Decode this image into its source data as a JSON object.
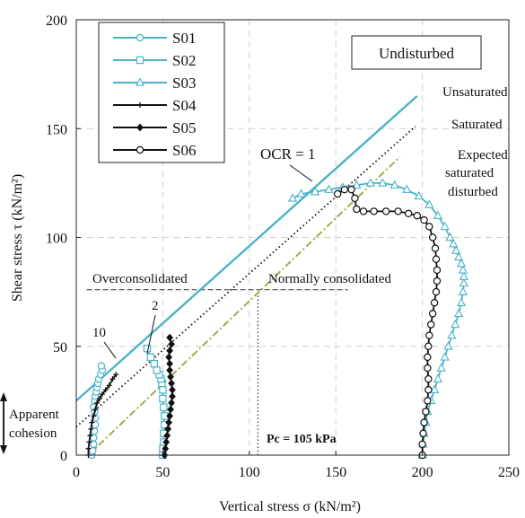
{
  "chart_data": {
    "type": "line",
    "title": "",
    "xlabel": "Vertical stress σ (kN/m²)",
    "ylabel": "Shear stress τ (kN/m²)",
    "xlim": [
      0,
      250
    ],
    "ylim": [
      0,
      200
    ],
    "x_ticks": [
      0,
      50,
      100,
      150,
      200,
      250
    ],
    "y_ticks": [
      0,
      50,
      100,
      150,
      200
    ],
    "grid": true,
    "legend": {
      "placement": "top-left",
      "entries": [
        "S01",
        "S02",
        "S03",
        "S04",
        "S05",
        "S06"
      ]
    },
    "series": [
      {
        "name": "S01",
        "color": "#4ab3c8",
        "marker": "circle",
        "x": [
          9,
          9.5,
          10,
          10,
          10.5,
          11,
          11,
          10.5,
          10,
          10.5,
          11,
          11.5,
          12,
          12.5,
          13,
          14,
          15,
          14.5
        ],
        "y": [
          0,
          2,
          5,
          8,
          11,
          14,
          17,
          20,
          22,
          25,
          27,
          29,
          31,
          33,
          35,
          37,
          39,
          41
        ]
      },
      {
        "name": "S02",
        "color": "#4ab3c8",
        "marker": "square",
        "x": [
          50,
          50,
          50.5,
          50.5,
          51,
          51,
          50.5,
          50,
          50,
          49.5,
          49,
          48,
          46.5,
          45,
          43,
          41
        ],
        "y": [
          0,
          3,
          6,
          10,
          14,
          18,
          22,
          26,
          30,
          33,
          35,
          37,
          39,
          42,
          45,
          49
        ]
      },
      {
        "name": "S03",
        "color": "#4ab3c8",
        "marker": "triangle",
        "x": [
          200,
          200.5,
          201,
          202,
          203,
          205,
          207,
          209,
          211,
          213,
          215,
          217,
          219,
          221,
          222.5,
          223.5,
          224,
          224,
          223.5,
          222.5,
          221,
          219.5,
          218,
          216,
          213,
          209,
          204,
          198,
          191,
          184,
          177,
          170,
          162,
          154,
          146,
          138,
          130,
          125
        ],
        "y": [
          0,
          5,
          10,
          15,
          20,
          25,
          30,
          35,
          40,
          45,
          50,
          55,
          60,
          65,
          70,
          75,
          79,
          82,
          85,
          88,
          91,
          94,
          97,
          100,
          105,
          110,
          115,
          119,
          122,
          124,
          125,
          125,
          124,
          123,
          122,
          121,
          120,
          118
        ]
      },
      {
        "name": "S04",
        "color": "#111111",
        "marker": "plus",
        "x": [
          7,
          7,
          7.5,
          8,
          8.5,
          9,
          10,
          11,
          12,
          13.5,
          15,
          17,
          19,
          21,
          23
        ],
        "y": [
          0,
          3,
          6,
          9,
          12,
          15,
          18,
          21,
          24,
          26,
          28,
          30,
          32,
          35,
          37
        ]
      },
      {
        "name": "S05",
        "color": "#111111",
        "marker": "diamond",
        "x": [
          51,
          51.5,
          52,
          52.5,
          53,
          53.5,
          54,
          54.5,
          55,
          55.5,
          55.5,
          55,
          54.5,
          54,
          54,
          53.5,
          54,
          55,
          54
        ],
        "y": [
          0,
          3,
          6,
          9,
          12,
          15,
          18,
          21,
          24,
          27,
          30,
          33,
          36,
          39,
          42,
          45,
          48,
          51,
          54
        ]
      },
      {
        "name": "S06",
        "color": "#111111",
        "marker": "circle",
        "x": [
          200,
          200,
          200.5,
          201,
          202,
          203,
          203.5,
          203.5,
          203,
          203,
          203.5,
          204,
          205,
          206,
          207,
          208,
          208.5,
          208.5,
          208,
          207.5,
          206,
          204,
          201,
          197,
          192,
          186,
          179,
          172,
          166,
          162,
          161,
          159,
          155,
          151
        ],
        "y": [
          0,
          5,
          10,
          15,
          20,
          25,
          30,
          35,
          40,
          45,
          50,
          55,
          60,
          65,
          70,
          75,
          80,
          85,
          90,
          95,
          100,
          105,
          108,
          110,
          111,
          112,
          112,
          112,
          112,
          113,
          118,
          122,
          122,
          120
        ]
      }
    ],
    "reference_lines": [
      {
        "label": "Unsaturated",
        "style": "solid",
        "color": "#4ab3c8",
        "x": [
          0,
          197
        ],
        "y": [
          25,
          165
        ]
      },
      {
        "label": "Saturated",
        "style": "dotted",
        "color": "#111111",
        "x": [
          0,
          196
        ],
        "y": [
          13,
          151
        ]
      },
      {
        "label": "Expected saturated disturbed",
        "style": "dashdot",
        "color": "#8faa3a",
        "x": [
          7,
          187
        ],
        "y": [
          0,
          137
        ]
      }
    ],
    "guides": {
      "horizontal_dashed": {
        "y": 76,
        "x": [
          6,
          157
        ]
      },
      "vertical_dotted": {
        "x": 105,
        "y": [
          0,
          76
        ]
      }
    },
    "annotations": {
      "box_label": "Undisturbed",
      "unsaturated": "Unsaturated",
      "saturated": "Saturated",
      "expected_line1": "Expected",
      "expected_line2": "saturated",
      "expected_line3": "disturbed",
      "ocr": "OCR = 1",
      "overconsolidated": "Overconsolidated",
      "normally_consolidated": "Normally consolidated",
      "ten": "10",
      "two": "2",
      "apparent1": "Apparent",
      "apparent2": "cohesion",
      "pc": "Pc = 105 kPa"
    }
  }
}
